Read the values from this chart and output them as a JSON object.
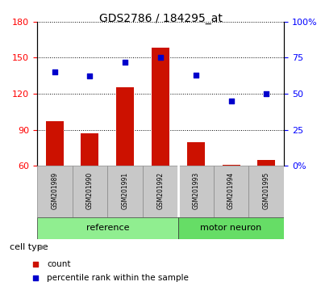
{
  "title": "GDS2786 / 184295_at",
  "samples": [
    "GSM201989",
    "GSM201990",
    "GSM201991",
    "GSM201992",
    "GSM201993",
    "GSM201994",
    "GSM201995"
  ],
  "count_values": [
    97,
    87,
    125,
    158,
    80,
    61,
    65
  ],
  "percentile_values": [
    65,
    62,
    72,
    75,
    63,
    45,
    50
  ],
  "ylim_left": [
    60,
    180
  ],
  "ylim_right": [
    0,
    100
  ],
  "yticks_left": [
    60,
    90,
    120,
    150,
    180
  ],
  "yticks_right": [
    0,
    25,
    50,
    75,
    100
  ],
  "yticklabels_right": [
    "0%",
    "25",
    "50",
    "75",
    "100%"
  ],
  "bar_color": "#CC1100",
  "dot_color": "#0000CC",
  "bar_width": 0.5,
  "tick_label_color": "#C0C0C0",
  "group_ref_color": "#90EE90",
  "group_mot_color": "#66DD66",
  "cell_type_label": "cell type",
  "legend_count_label": "count",
  "legend_percentile_label": "percentile rank within the sample",
  "title_fontsize": 10,
  "axis_fontsize": 8,
  "legend_fontsize": 7.5,
  "sample_fontsize": 5.5,
  "group_label_fontsize": 8,
  "cell_type_fontsize": 8
}
